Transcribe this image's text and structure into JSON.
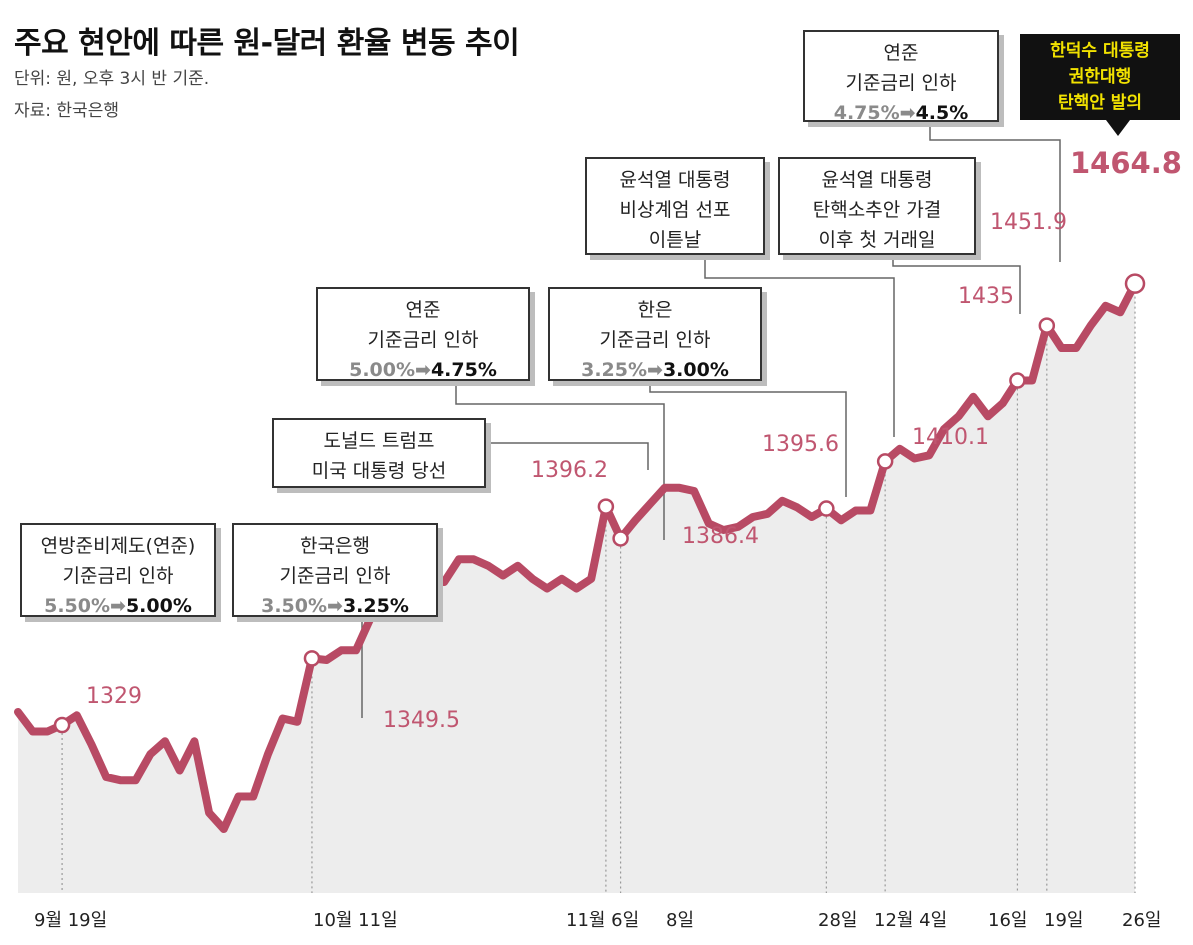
{
  "title": "주요 현안에 따른 원-달러 환율 변동 추이",
  "unit_note": "단위: 원, 오후 3시 반 기준.",
  "source": "자료: 한국은행",
  "colors": {
    "line": "#b84a64",
    "area": "#ededed",
    "label": "#c05670",
    "dark_box_bg": "#111111",
    "dark_box_text": "#f2e200"
  },
  "chart_data": {
    "type": "line",
    "title": "주요 현안에 따른 원-달러 환율 변동 추이",
    "ylabel": "원",
    "ylim": [
      1300,
      1475
    ],
    "x_tick_labels": [
      "9월 19일",
      "10월 11일",
      "11월 6일",
      "8일",
      "28일",
      "12월 4일",
      "16일",
      "19일",
      "26일"
    ],
    "series": [
      {
        "values": [
          1333,
          1327,
          1327,
          1329,
          1332,
          1323,
          1313,
          1312,
          1312,
          1320,
          1324,
          1315,
          1324,
          1302,
          1297,
          1307,
          1307,
          1320,
          1331,
          1330,
          1349.5,
          1349,
          1352,
          1352,
          1362,
          1362,
          1367,
          1367,
          1373,
          1373,
          1380,
          1380,
          1378,
          1375,
          1378,
          1374,
          1371,
          1374,
          1371,
          1374,
          1396.2,
          1386.4,
          1392,
          1397,
          1402,
          1402,
          1401,
          1391,
          1389,
          1390,
          1393,
          1394,
          1398,
          1396,
          1393,
          1395.6,
          1392,
          1395,
          1395,
          1410.1,
          1414,
          1411,
          1412,
          1420,
          1424,
          1430,
          1424,
          1428,
          1435,
          1435,
          1451.9,
          1445,
          1445,
          1452,
          1458,
          1456,
          1464.8
        ]
      }
    ],
    "annotated_points": [
      {
        "label": "1329",
        "value": 1329
      },
      {
        "label": "1349.5",
        "value": 1349.5
      },
      {
        "label": "1396.2",
        "value": 1396.2
      },
      {
        "label": "1386.4",
        "value": 1386.4
      },
      {
        "label": "1395.6",
        "value": 1395.6
      },
      {
        "label": "1410.1",
        "value": 1410.1
      },
      {
        "label": "1435",
        "value": 1435
      },
      {
        "label": "1451.9",
        "value": 1451.9
      },
      {
        "label": "1464.8",
        "value": 1464.8
      }
    ]
  },
  "events": [
    {
      "lines": [
        "연방준비제도(연준)",
        "기준금리 인하"
      ],
      "rate_old": "5.50%",
      "rate_new": "5.00%"
    },
    {
      "lines": [
        "한국은행",
        "기준금리 인하"
      ],
      "rate_old": "3.50%",
      "rate_new": "3.25%"
    },
    {
      "lines": [
        "도널드 트럼프",
        "미국 대통령 당선"
      ]
    },
    {
      "lines": [
        "연준",
        "기준금리 인하"
      ],
      "rate_old": "5.00%",
      "rate_new": "4.75%"
    },
    {
      "lines": [
        "한은",
        "기준금리 인하"
      ],
      "rate_old": "3.25%",
      "rate_new": "3.00%"
    },
    {
      "lines": [
        "윤석열 대통령",
        "비상계엄 선포",
        "이튿날"
      ]
    },
    {
      "lines": [
        "윤석열 대통령",
        "탄핵소추안 가결",
        "이후 첫 거래일"
      ]
    },
    {
      "lines": [
        "연준",
        "기준금리 인하"
      ],
      "rate_old": "4.75%",
      "rate_new": "4.5%"
    },
    {
      "lines": [
        "한덕수 대통령",
        "권한대행",
        "탄핵안 발의"
      ]
    }
  ],
  "rate_arrow": "➡"
}
